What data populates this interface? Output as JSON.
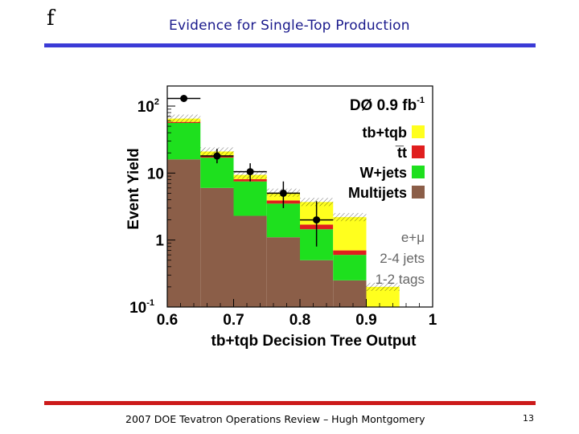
{
  "slide": {
    "corner_symbol": "f",
    "title": "Evidence for Single-Top Production",
    "footer": "2007 DOE Tevatron Operations Review – Hugh Montgomery",
    "page_number": "13",
    "title_color": "#1a1a8c",
    "top_rule_color": "#3b3bd6",
    "bottom_rule_color": "#cc1a1a"
  },
  "chart_data": {
    "type": "bar",
    "subtype": "stacked-histogram-log",
    "xlabel": "tb+tqb Decision Tree Output",
    "ylabel": "Event Yield",
    "xlim": [
      0.6,
      1.0
    ],
    "ylim_log10": [
      -1,
      2.3
    ],
    "x_ticks": [
      {
        "value": 0.6,
        "label": "0.6"
      },
      {
        "value": 0.7,
        "label": "0.7"
      },
      {
        "value": 0.8,
        "label": "0.8"
      },
      {
        "value": 0.9,
        "label": "0.9"
      },
      {
        "value": 1.0,
        "label": "1"
      }
    ],
    "y_ticks": [
      {
        "value": 100,
        "base": "10",
        "exp": "2"
      },
      {
        "value": 10,
        "base": "10",
        "exp": ""
      },
      {
        "value": 1,
        "base": "1",
        "exp": ""
      },
      {
        "value": 0.1,
        "base": "10",
        "exp": "-1"
      }
    ],
    "bin_edges": [
      0.6,
      0.65,
      0.7,
      0.75,
      0.8,
      0.85,
      0.9,
      0.95,
      1.0
    ],
    "series": [
      {
        "name": "Multijets",
        "color": "#8b5e48",
        "values": [
          16,
          6,
          2.3,
          1.1,
          0.5,
          0.25,
          0,
          0
        ]
      },
      {
        "name": "W+jets",
        "color": "#1ee01e",
        "values": [
          40,
          11,
          5.2,
          2.4,
          0.95,
          0.35,
          0.1,
          0
        ]
      },
      {
        "name": "t̅t",
        "color": "#e01e1e",
        "values": [
          2,
          1,
          0.6,
          0.4,
          0.25,
          0.1,
          0,
          0
        ]
      },
      {
        "name": "tb+tqb",
        "color": "#ffff1e",
        "values": [
          7,
          3,
          1.3,
          1.2,
          2.0,
          1.5,
          0.1,
          0
        ]
      }
    ],
    "data_points": [
      {
        "x": 0.625,
        "y": 130,
        "y_low": 118,
        "y_high": 143
      },
      {
        "x": 0.675,
        "y": 18,
        "y_low": 14,
        "y_high": 23
      },
      {
        "x": 0.725,
        "y": 10.5,
        "y_low": 7.5,
        "y_high": 14
      },
      {
        "x": 0.775,
        "y": 5,
        "y_low": 3,
        "y_high": 7.5
      },
      {
        "x": 0.825,
        "y": 2,
        "y_low": 0.8,
        "y_high": 3.8
      }
    ],
    "experiment_label": "DØ  0.9 fb",
    "experiment_sup": "-1",
    "annotations": [
      "e+μ",
      "2-4 jets",
      "1-2 tags"
    ],
    "legend_order": [
      "tb+tqb",
      "t̅t",
      "W+jets",
      "Multijets"
    ]
  }
}
